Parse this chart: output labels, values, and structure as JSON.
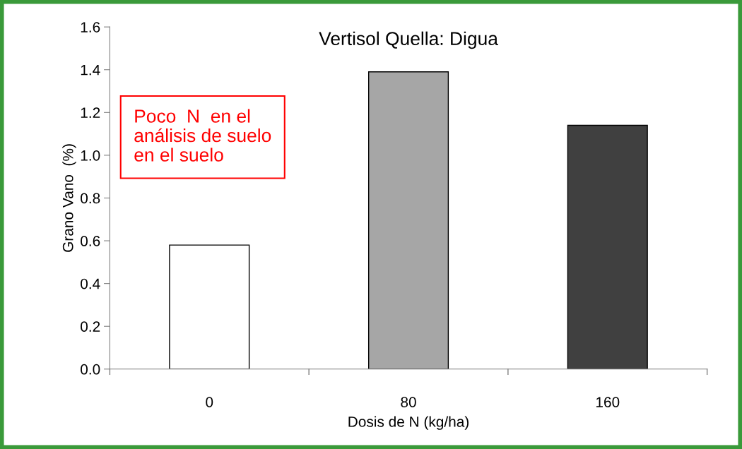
{
  "chart_data": {
    "type": "bar",
    "title": "Vertisol Quella: Digua",
    "xlabel": "Dosis de N (kg/ha)",
    "ylabel": "Grano Vano  (%)",
    "categories": [
      "0",
      "80",
      "160"
    ],
    "values": [
      0.58,
      1.39,
      1.14
    ],
    "colors": [
      "#ffffff",
      "#a6a6a6",
      "#404040"
    ],
    "ylim": [
      0,
      1.6
    ],
    "yticks": [
      {
        "value": 0,
        "label": "0.0"
      },
      {
        "value": 0.2,
        "label": "0.2"
      },
      {
        "value": 0.4,
        "label": "0.4"
      },
      {
        "value": 0.6,
        "label": "0.6"
      },
      {
        "value": 0.8,
        "label": "0.8"
      },
      {
        "value": 1.0,
        "label": "1.0"
      },
      {
        "value": 1.2,
        "label": "1.2"
      },
      {
        "value": 1.4,
        "label": "1.4"
      },
      {
        "value": 1.6,
        "label": "1.6"
      }
    ],
    "grid": false,
    "legend": false,
    "annotations": [
      "Poco  N  en el\nanálisis de suelo\nen el suelo"
    ]
  }
}
